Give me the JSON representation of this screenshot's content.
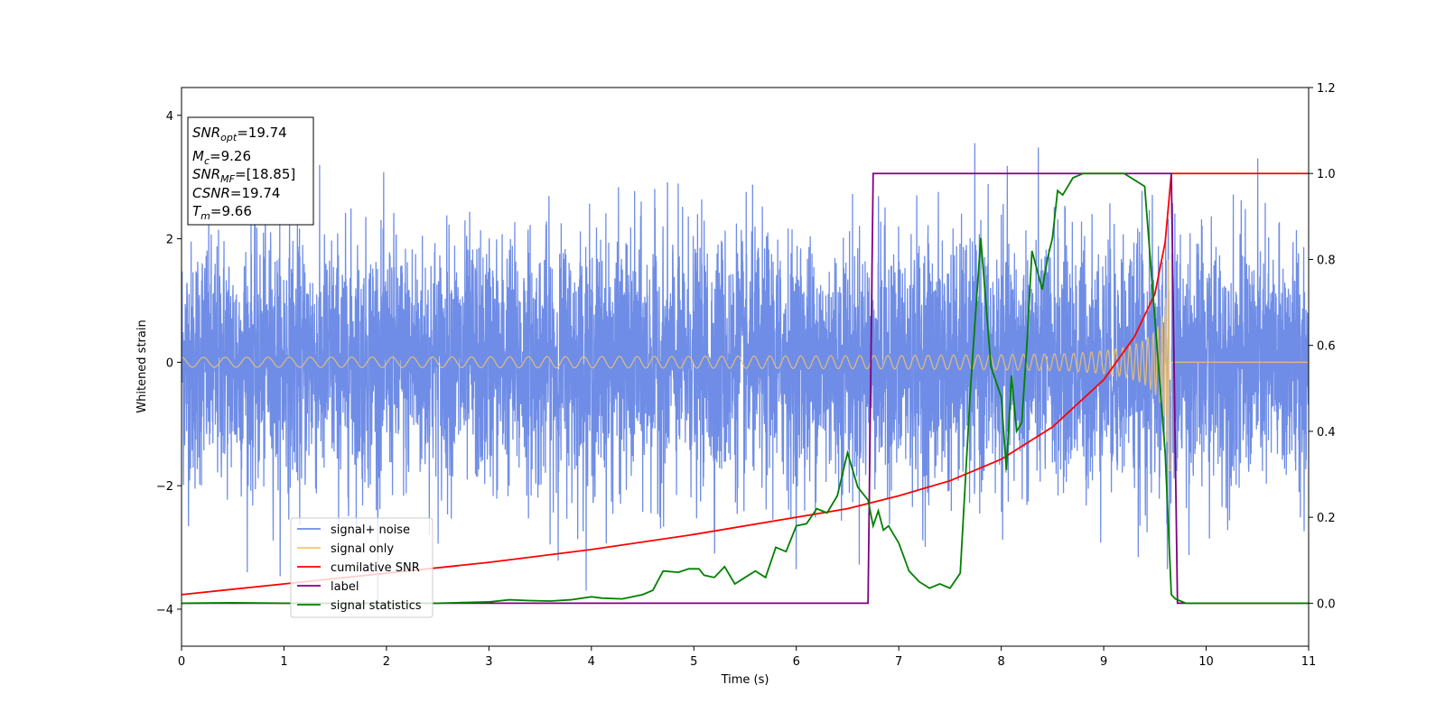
{
  "chart_data": {
    "type": "line",
    "xlabel": "Time (s)",
    "ylabel": "Whitened strain",
    "xlim": [
      0,
      11
    ],
    "ylim": [
      -4.6,
      4.45
    ],
    "y2lim": [
      -0.1,
      1.2
    ],
    "x_ticks": [
      "0",
      "1",
      "2",
      "3",
      "4",
      "5",
      "6",
      "7",
      "8",
      "9",
      "10",
      "11"
    ],
    "y_ticks": [
      "−4",
      "−2",
      "0",
      "2",
      "4"
    ],
    "y2_ticks": [
      "0.0",
      "0.2",
      "0.4",
      "0.6",
      "0.8",
      "1.0",
      "1.2"
    ],
    "grid": false,
    "legend_position": "lower-left",
    "annotation": {
      "snr_opt": {
        "base": "SNR",
        "sub": "opt",
        "value": "=19.74"
      },
      "mc": {
        "base": "M",
        "sub": "c",
        "value": "=9.26"
      },
      "snr_mf": {
        "base": "SNR",
        "sub": "MF",
        "value": "=[18.85]"
      },
      "csnr": {
        "base": "CSNR",
        "value": "=19.74"
      },
      "tm": {
        "base": "T",
        "sub": "m",
        "value": "=9.66"
      }
    },
    "series": [
      {
        "name": "signal+ noise",
        "axis": "left",
        "color": "#6f8de6",
        "kind": "noise",
        "std": 1.0,
        "merger_time": 9.66
      },
      {
        "name": "signal only",
        "axis": "left",
        "color": "#f5c46a",
        "kind": "chirp",
        "start_amplitude": 0.08,
        "peak_amplitude": 2.6,
        "merger_time": 9.66
      },
      {
        "name": "cumilative SNR",
        "axis": "right",
        "color": "#ff0000",
        "x": [
          0,
          1,
          2,
          3,
          4,
          5,
          6,
          6.5,
          7,
          7.5,
          8,
          8.5,
          9,
          9.3,
          9.5,
          9.6,
          9.66,
          9.67,
          11
        ],
        "y": [
          0.02,
          0.045,
          0.07,
          0.095,
          0.125,
          0.16,
          0.2,
          0.22,
          0.25,
          0.285,
          0.335,
          0.41,
          0.52,
          0.62,
          0.72,
          0.84,
          1.0,
          1.0,
          1.0
        ]
      },
      {
        "name": "label",
        "axis": "right",
        "color": "#800080",
        "x": [
          0,
          6.7,
          6.75,
          9.66,
          9.72,
          11
        ],
        "y": [
          0,
          0,
          1,
          1,
          0,
          0
        ]
      },
      {
        "name": "signal statistics",
        "axis": "right",
        "color": "#008000",
        "x": [
          0,
          0.5,
          1,
          1.5,
          2,
          2.5,
          3,
          3.2,
          3.4,
          3.6,
          3.8,
          4.0,
          4.1,
          4.3,
          4.5,
          4.6,
          4.7,
          4.85,
          4.95,
          5.05,
          5.1,
          5.2,
          5.3,
          5.4,
          5.5,
          5.6,
          5.7,
          5.8,
          5.9,
          6.0,
          6.1,
          6.2,
          6.3,
          6.4,
          6.5,
          6.6,
          6.7,
          6.75,
          6.8,
          6.85,
          6.9,
          7.0,
          7.1,
          7.2,
          7.3,
          7.4,
          7.5,
          7.6,
          7.7,
          7.8,
          7.9,
          8.0,
          8.05,
          8.1,
          8.15,
          8.2,
          8.25,
          8.3,
          8.4,
          8.45,
          8.5,
          8.55,
          8.6,
          8.7,
          8.8,
          9.0,
          9.2,
          9.4,
          9.6,
          9.66,
          9.7,
          9.8,
          11
        ],
        "y": [
          0.0,
          0.001,
          0.0,
          0.0,
          0.0,
          0.0,
          0.003,
          0.008,
          0.006,
          0.005,
          0.008,
          0.015,
          0.012,
          0.01,
          0.02,
          0.03,
          0.075,
          0.072,
          0.08,
          0.08,
          0.065,
          0.06,
          0.085,
          0.045,
          0.06,
          0.075,
          0.06,
          0.13,
          0.12,
          0.18,
          0.185,
          0.22,
          0.21,
          0.25,
          0.35,
          0.27,
          0.24,
          0.18,
          0.215,
          0.17,
          0.18,
          0.14,
          0.075,
          0.05,
          0.035,
          0.045,
          0.035,
          0.07,
          0.5,
          0.85,
          0.55,
          0.48,
          0.31,
          0.53,
          0.4,
          0.42,
          0.6,
          0.82,
          0.73,
          0.8,
          0.85,
          0.96,
          0.95,
          0.99,
          1.0,
          1.0,
          1.0,
          0.97,
          0.35,
          0.02,
          0.01,
          0.0,
          0.0
        ]
      }
    ]
  }
}
